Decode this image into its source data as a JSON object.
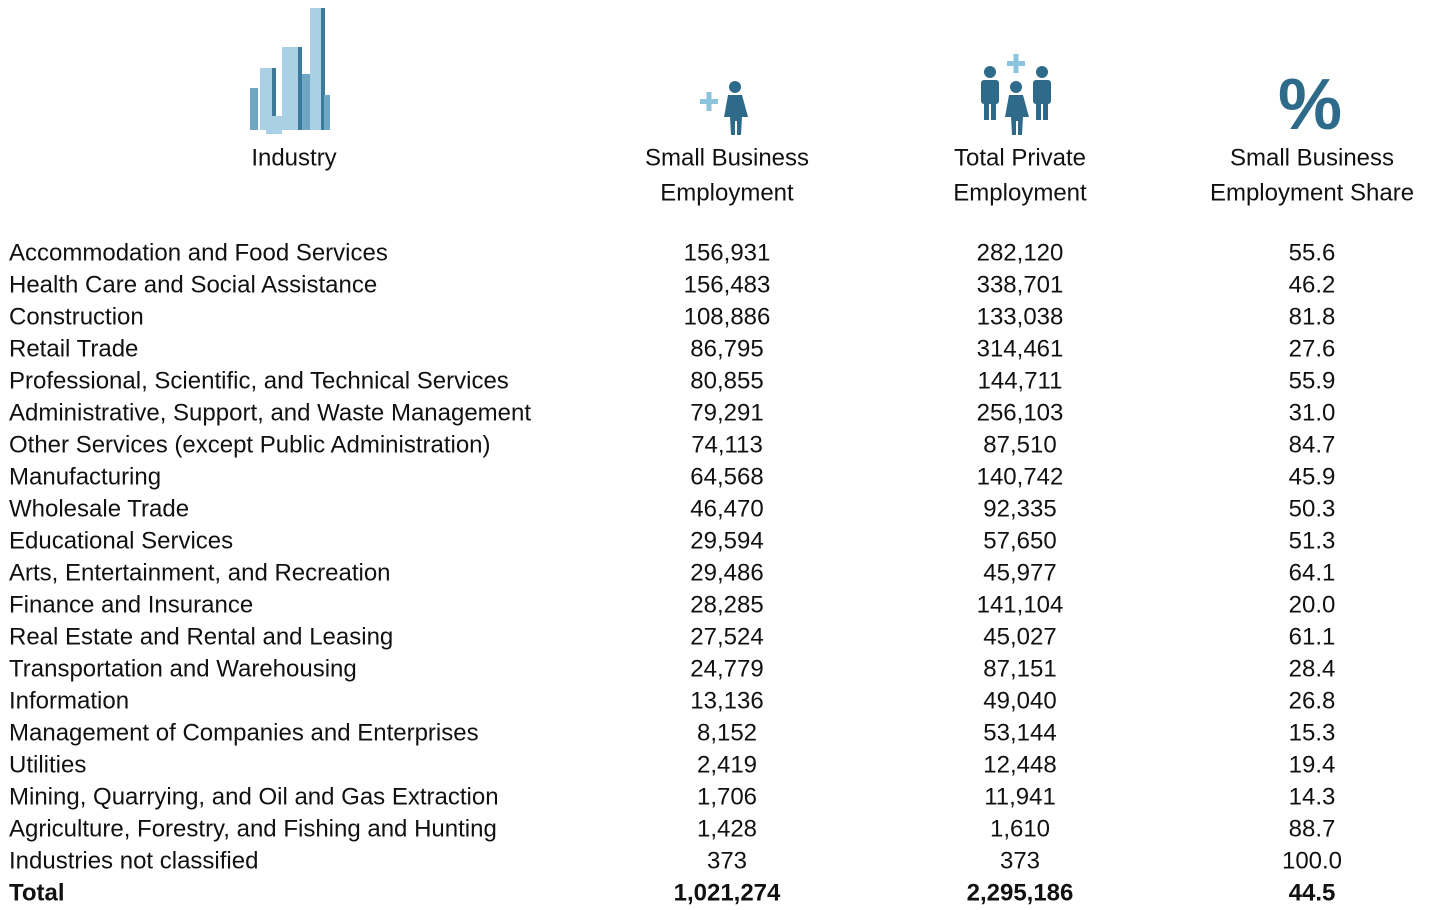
{
  "table": {
    "header": [
      [
        "Industry"
      ],
      [
        "Small Business",
        "Employment"
      ],
      [
        "Total Private",
        "Employment"
      ],
      [
        "Small Business",
        "Employment Share"
      ]
    ],
    "rows": [
      [
        "Accommodation and Food Services",
        "156,931",
        "282,120",
        "55.6"
      ],
      [
        "Health Care and Social Assistance",
        "156,483",
        "338,701",
        "46.2"
      ],
      [
        "Construction",
        "108,886",
        "133,038",
        "81.8"
      ],
      [
        "Retail Trade",
        "86,795",
        "314,461",
        "27.6"
      ],
      [
        "Professional, Scientific, and Technical Services",
        "80,855",
        "144,711",
        "55.9"
      ],
      [
        "Administrative, Support, and Waste Management",
        "79,291",
        "256,103",
        "31.0"
      ],
      [
        "Other Services (except Public Administration)",
        "74,113",
        "87,510",
        "84.7"
      ],
      [
        "Manufacturing",
        "64,568",
        "140,742",
        "45.9"
      ],
      [
        "Wholesale Trade",
        "46,470",
        "92,335",
        "50.3"
      ],
      [
        "Educational Services",
        "29,594",
        "57,650",
        "51.3"
      ],
      [
        "Arts, Entertainment, and Recreation",
        "29,486",
        "45,977",
        "64.1"
      ],
      [
        "Finance and Insurance",
        "28,285",
        "141,104",
        "20.0"
      ],
      [
        "Real Estate and Rental and Leasing",
        "27,524",
        "45,027",
        "61.1"
      ],
      [
        "Transportation and Warehousing",
        "24,779",
        "87,151",
        "28.4"
      ],
      [
        "Information",
        "13,136",
        "49,040",
        "26.8"
      ],
      [
        "Management of Companies and Enterprises",
        "8,152",
        "53,144",
        "15.3"
      ],
      [
        "Utilities",
        "2,419",
        "12,448",
        "19.4"
      ],
      [
        "Mining, Quarrying, and Oil and Gas Extraction",
        "1,706",
        "11,941",
        "14.3"
      ],
      [
        "Agriculture, Forestry, and Fishing and Hunting",
        "1,428",
        "1,610",
        "88.7"
      ],
      [
        "Industries not classified",
        "373",
        "373",
        "100.0"
      ]
    ],
    "total": [
      "Total",
      "1,021,274",
      "2,295,186",
      "44.5"
    ]
  }
}
